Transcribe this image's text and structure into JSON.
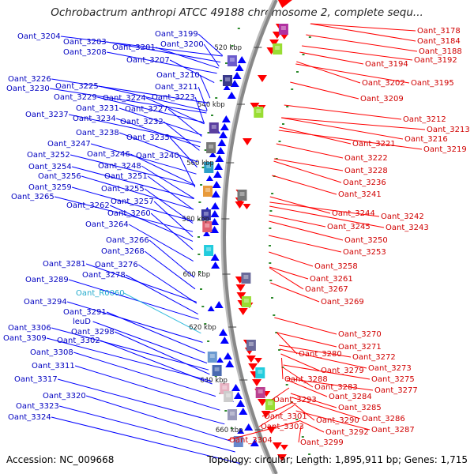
{
  "title": "Ochrobactrum anthropi ATCC 49188 chromosome 2, complete sequ...",
  "footer": {
    "accession": "Accession: NC_009668",
    "summary": "Topology: circular; Length: 1,895,911 bp; Genes: 1,715"
  },
  "colors": {
    "minus_strand": "#0000ff",
    "plus_strand": "#ff0000",
    "rna": "#33bbdd",
    "backbone": "#888888"
  },
  "kbp_markers": [
    "520 kbp",
    "540 kbp",
    "560 kbp",
    "580 kbp",
    "600 kbp",
    "620 kbp",
    "640 kbp",
    "660 kbp"
  ],
  "left_labels": [
    {
      "text": "Oant_3204",
      "color": "minus"
    },
    {
      "text": "Oant_3203",
      "color": "minus"
    },
    {
      "text": "Oant_3201",
      "color": "minus"
    },
    {
      "text": "Oant_3208",
      "color": "minus"
    },
    {
      "text": "Oant_3199",
      "color": "minus"
    },
    {
      "text": "Oant_3200",
      "color": "minus"
    },
    {
      "text": "Oant_3207",
      "color": "minus"
    },
    {
      "text": "Oant_3210",
      "color": "minus"
    },
    {
      "text": "Oant_3211",
      "color": "minus"
    },
    {
      "text": "Oant_3226",
      "color": "minus"
    },
    {
      "text": "Oant_3230",
      "color": "minus"
    },
    {
      "text": "Oant_3225",
      "color": "minus"
    },
    {
      "text": "Oant_3229",
      "color": "minus"
    },
    {
      "text": "Oant_3224",
      "color": "minus"
    },
    {
      "text": "Oant_3223",
      "color": "minus"
    },
    {
      "text": "Oant_3231",
      "color": "minus"
    },
    {
      "text": "Oant_3227",
      "color": "minus"
    },
    {
      "text": "Oant_3237",
      "color": "minus"
    },
    {
      "text": "Oant_3234",
      "color": "minus"
    },
    {
      "text": "Oant_3232",
      "color": "minus"
    },
    {
      "text": "Oant_3238",
      "color": "minus"
    },
    {
      "text": "Oant_3235",
      "color": "minus"
    },
    {
      "text": "Oant_3247",
      "color": "minus"
    },
    {
      "text": "Oant_3252",
      "color": "minus"
    },
    {
      "text": "Oant_3246",
      "color": "minus"
    },
    {
      "text": "Oant_3240",
      "color": "minus"
    },
    {
      "text": "Oant_3254",
      "color": "minus"
    },
    {
      "text": "Oant_3248",
      "color": "minus"
    },
    {
      "text": "Oant_3256",
      "color": "minus"
    },
    {
      "text": "Oant_3251",
      "color": "minus"
    },
    {
      "text": "Oant_3259",
      "color": "minus"
    },
    {
      "text": "Oant_3255",
      "color": "minus"
    },
    {
      "text": "Oant_3265",
      "color": "minus"
    },
    {
      "text": "Oant_3257",
      "color": "minus"
    },
    {
      "text": "Oant_3262",
      "color": "minus"
    },
    {
      "text": "Oant_3260",
      "color": "minus"
    },
    {
      "text": "Oant_3264",
      "color": "minus"
    },
    {
      "text": "Oant_3266",
      "color": "minus"
    },
    {
      "text": "Oant_3268",
      "color": "minus"
    },
    {
      "text": "Oant_3281",
      "color": "minus"
    },
    {
      "text": "Oant_3276",
      "color": "minus"
    },
    {
      "text": "Oant_3278",
      "color": "minus"
    },
    {
      "text": "Oant_3289",
      "color": "minus"
    },
    {
      "text": "Oant_R0060",
      "color": "rna"
    },
    {
      "text": "Oant_3294",
      "color": "minus"
    },
    {
      "text": "Oant_3291",
      "color": "minus"
    },
    {
      "text": "leuD",
      "color": "minus"
    },
    {
      "text": "Oant_3306",
      "color": "minus"
    },
    {
      "text": "Oant_3298",
      "color": "minus"
    },
    {
      "text": "Oant_3309",
      "color": "minus"
    },
    {
      "text": "Oant_3302",
      "color": "minus"
    },
    {
      "text": "Oant_3308",
      "color": "minus"
    },
    {
      "text": "Oant_3311",
      "color": "minus"
    },
    {
      "text": "Oant_3317",
      "color": "minus"
    },
    {
      "text": "Oant_3320",
      "color": "minus"
    },
    {
      "text": "Oant_3323",
      "color": "minus"
    },
    {
      "text": "Oant_3324",
      "color": "minus"
    }
  ],
  "right_labels": [
    {
      "text": "Oant_3178"
    },
    {
      "text": "Oant_3184"
    },
    {
      "text": "Oant_3188"
    },
    {
      "text": "Oant_3192"
    },
    {
      "text": "Oant_3194"
    },
    {
      "text": "Oant_3202"
    },
    {
      "text": "Oant_3195"
    },
    {
      "text": "Oant_3209"
    },
    {
      "text": "Oant_3212"
    },
    {
      "text": "Oant_3213"
    },
    {
      "text": "Oant_3216"
    },
    {
      "text": "Oant_3219"
    },
    {
      "text": "Oant_3221"
    },
    {
      "text": "Oant_3222"
    },
    {
      "text": "Oant_3228"
    },
    {
      "text": "Oant_3236"
    },
    {
      "text": "Oant_3241"
    },
    {
      "text": "Oant_3244"
    },
    {
      "text": "Oant_3242"
    },
    {
      "text": "Oant_3245"
    },
    {
      "text": "Oant_3243"
    },
    {
      "text": "Oant_3250"
    },
    {
      "text": "Oant_3253"
    },
    {
      "text": "Oant_3258"
    },
    {
      "text": "Oant_3261"
    },
    {
      "text": "Oant_3267"
    },
    {
      "text": "Oant_3269"
    },
    {
      "text": "Oant_3270"
    },
    {
      "text": "Oant_3271"
    },
    {
      "text": "Oant_3272"
    },
    {
      "text": "Oant_3280"
    },
    {
      "text": "Oant_3273"
    },
    {
      "text": "Oant_3279"
    },
    {
      "text": "Oant_3275"
    },
    {
      "text": "Oant_3277"
    },
    {
      "text": "Oant_3288"
    },
    {
      "text": "Oant_3283"
    },
    {
      "text": "Oant_3284"
    },
    {
      "text": "Oant_3285"
    },
    {
      "text": "Oant_3293"
    },
    {
      "text": "Oant_3286"
    },
    {
      "text": "Oant_3287"
    },
    {
      "text": "Oant_3290"
    },
    {
      "text": "Oant_3301"
    },
    {
      "text": "Oant_3292"
    },
    {
      "text": "Oant_3303"
    },
    {
      "text": "Oant_3304"
    },
    {
      "text": "Oant_3299"
    }
  ]
}
